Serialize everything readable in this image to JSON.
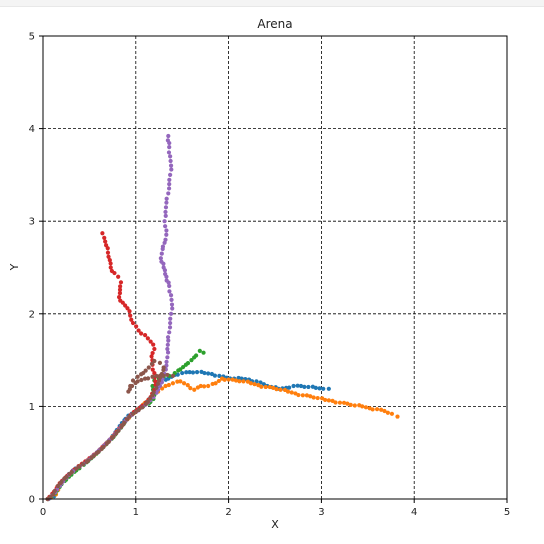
{
  "chart_data": {
    "type": "scatter",
    "title": "Arena",
    "xlabel": "X",
    "ylabel": "Y",
    "xlim": [
      0,
      5
    ],
    "ylim": [
      0,
      5
    ],
    "x_ticks": [
      "0",
      "1",
      "2",
      "3",
      "4",
      "5"
    ],
    "y_ticks": [
      "0",
      "1",
      "2",
      "3",
      "4",
      "5"
    ],
    "grid": true,
    "grid_style": "dashed",
    "series": [
      {
        "color": "#1f77b4",
        "points": [
          [
            0.05,
            0.0
          ],
          [
            0.12,
            0.03
          ],
          [
            0.15,
            0.1
          ],
          [
            0.2,
            0.18
          ],
          [
            0.28,
            0.27
          ],
          [
            0.35,
            0.33
          ],
          [
            0.42,
            0.38
          ],
          [
            0.5,
            0.43
          ],
          [
            0.58,
            0.5
          ],
          [
            0.65,
            0.57
          ],
          [
            0.72,
            0.64
          ],
          [
            0.78,
            0.72
          ],
          [
            0.85,
            0.82
          ],
          [
            0.92,
            0.9
          ],
          [
            1.0,
            0.95
          ],
          [
            1.06,
            1.0
          ],
          [
            1.12,
            1.05
          ],
          [
            1.18,
            1.12
          ],
          [
            1.23,
            1.2
          ],
          [
            1.28,
            1.26
          ],
          [
            1.35,
            1.3
          ],
          [
            1.42,
            1.34
          ],
          [
            1.5,
            1.36
          ],
          [
            1.58,
            1.37
          ],
          [
            1.66,
            1.37
          ],
          [
            1.74,
            1.36
          ],
          [
            1.82,
            1.35
          ],
          [
            1.9,
            1.33
          ],
          [
            1.98,
            1.31
          ],
          [
            2.06,
            1.3
          ],
          [
            2.14,
            1.3
          ],
          [
            2.22,
            1.29
          ],
          [
            2.3,
            1.27
          ],
          [
            2.38,
            1.24
          ],
          [
            2.46,
            1.21
          ],
          [
            2.54,
            1.19
          ],
          [
            2.62,
            1.2
          ],
          [
            2.7,
            1.22
          ],
          [
            2.78,
            1.22
          ],
          [
            2.86,
            1.21
          ],
          [
            2.94,
            1.2
          ],
          [
            3.02,
            1.19
          ],
          [
            3.08,
            1.19
          ]
        ]
      },
      {
        "color": "#ff7f0e",
        "points": [
          [
            0.05,
            0.0
          ],
          [
            0.14,
            0.05
          ],
          [
            0.18,
            0.14
          ],
          [
            0.25,
            0.23
          ],
          [
            0.33,
            0.3
          ],
          [
            0.4,
            0.36
          ],
          [
            0.48,
            0.42
          ],
          [
            0.56,
            0.48
          ],
          [
            0.64,
            0.56
          ],
          [
            0.72,
            0.64
          ],
          [
            0.8,
            0.73
          ],
          [
            0.88,
            0.83
          ],
          [
            0.96,
            0.91
          ],
          [
            1.04,
            0.98
          ],
          [
            1.1,
            1.04
          ],
          [
            1.17,
            1.1
          ],
          [
            1.24,
            1.16
          ],
          [
            1.32,
            1.22
          ],
          [
            1.4,
            1.25
          ],
          [
            1.48,
            1.27
          ],
          [
            1.56,
            1.23
          ],
          [
            1.63,
            1.18
          ],
          [
            1.7,
            1.22
          ],
          [
            1.78,
            1.22
          ],
          [
            1.86,
            1.25
          ],
          [
            1.93,
            1.3
          ],
          [
            2.0,
            1.29
          ],
          [
            2.08,
            1.28
          ],
          [
            2.16,
            1.27
          ],
          [
            2.24,
            1.25
          ],
          [
            2.32,
            1.23
          ],
          [
            2.4,
            1.21
          ],
          [
            2.48,
            1.2
          ],
          [
            2.56,
            1.18
          ],
          [
            2.64,
            1.16
          ],
          [
            2.72,
            1.14
          ],
          [
            2.8,
            1.12
          ],
          [
            2.88,
            1.11
          ],
          [
            2.96,
            1.09
          ],
          [
            3.04,
            1.07
          ],
          [
            3.12,
            1.06
          ],
          [
            3.2,
            1.04
          ],
          [
            3.28,
            1.03
          ],
          [
            3.36,
            1.01
          ],
          [
            3.44,
            1.0
          ],
          [
            3.52,
            0.98
          ],
          [
            3.6,
            0.97
          ],
          [
            3.68,
            0.95
          ],
          [
            3.76,
            0.92
          ],
          [
            3.82,
            0.89
          ]
        ]
      },
      {
        "color": "#2ca02c",
        "points": [
          [
            0.06,
            0.0
          ],
          [
            0.13,
            0.06
          ],
          [
            0.2,
            0.16
          ],
          [
            0.28,
            0.24
          ],
          [
            0.36,
            0.31
          ],
          [
            0.44,
            0.37
          ],
          [
            0.52,
            0.44
          ],
          [
            0.6,
            0.51
          ],
          [
            0.68,
            0.59
          ],
          [
            0.76,
            0.67
          ],
          [
            0.84,
            0.77
          ],
          [
            0.92,
            0.88
          ],
          [
            1.0,
            0.95
          ],
          [
            1.08,
            1.0
          ],
          [
            1.14,
            1.03
          ],
          [
            1.19,
            1.08
          ],
          [
            1.2,
            1.15
          ],
          [
            1.18,
            1.22
          ],
          [
            1.2,
            1.28
          ],
          [
            1.25,
            1.3
          ],
          [
            1.3,
            1.32
          ],
          [
            1.36,
            1.33
          ],
          [
            1.42,
            1.36
          ],
          [
            1.48,
            1.4
          ],
          [
            1.54,
            1.45
          ],
          [
            1.6,
            1.5
          ],
          [
            1.65,
            1.55
          ],
          [
            1.69,
            1.6
          ],
          [
            1.73,
            1.58
          ]
        ]
      },
      {
        "color": "#d62728",
        "points": [
          [
            0.05,
            0.0
          ],
          [
            0.12,
            0.08
          ],
          [
            0.18,
            0.17
          ],
          [
            0.26,
            0.25
          ],
          [
            0.34,
            0.32
          ],
          [
            0.42,
            0.38
          ],
          [
            0.5,
            0.44
          ],
          [
            0.58,
            0.5
          ],
          [
            0.66,
            0.58
          ],
          [
            0.74,
            0.66
          ],
          [
            0.82,
            0.76
          ],
          [
            0.9,
            0.86
          ],
          [
            0.98,
            0.94
          ],
          [
            1.05,
            0.99
          ],
          [
            1.11,
            1.04
          ],
          [
            1.16,
            1.1
          ],
          [
            1.2,
            1.18
          ],
          [
            1.21,
            1.27
          ],
          [
            1.2,
            1.36
          ],
          [
            1.18,
            1.45
          ],
          [
            1.17,
            1.54
          ],
          [
            1.2,
            1.62
          ],
          [
            1.16,
            1.7
          ],
          [
            1.1,
            1.77
          ],
          [
            1.03,
            1.82
          ],
          [
            0.97,
            1.9
          ],
          [
            0.94,
            1.98
          ],
          [
            0.91,
            2.06
          ],
          [
            0.86,
            2.12
          ],
          [
            0.82,
            2.18
          ],
          [
            0.83,
            2.26
          ],
          [
            0.84,
            2.34
          ],
          [
            0.81,
            2.4
          ],
          [
            0.77,
            2.44
          ],
          [
            0.73,
            2.5
          ],
          [
            0.72,
            2.58
          ],
          [
            0.7,
            2.66
          ],
          [
            0.68,
            2.74
          ],
          [
            0.66,
            2.82
          ],
          [
            0.64,
            2.87
          ]
        ]
      },
      {
        "color": "#9467bd",
        "points": [
          [
            0.06,
            0.0
          ],
          [
            0.13,
            0.07
          ],
          [
            0.2,
            0.17
          ],
          [
            0.28,
            0.26
          ],
          [
            0.36,
            0.33
          ],
          [
            0.44,
            0.38
          ],
          [
            0.52,
            0.45
          ],
          [
            0.6,
            0.52
          ],
          [
            0.68,
            0.6
          ],
          [
            0.76,
            0.68
          ],
          [
            0.84,
            0.78
          ],
          [
            0.92,
            0.88
          ],
          [
            1.0,
            0.94
          ],
          [
            1.07,
            0.99
          ],
          [
            1.13,
            1.04
          ],
          [
            1.19,
            1.1
          ],
          [
            1.24,
            1.18
          ],
          [
            1.28,
            1.26
          ],
          [
            1.31,
            1.35
          ],
          [
            1.33,
            1.44
          ],
          [
            1.34,
            1.53
          ],
          [
            1.34,
            1.62
          ],
          [
            1.35,
            1.71
          ],
          [
            1.36,
            1.8
          ],
          [
            1.37,
            1.9
          ],
          [
            1.38,
            2.0
          ],
          [
            1.39,
            2.1
          ],
          [
            1.38,
            2.2
          ],
          [
            1.36,
            2.3
          ],
          [
            1.33,
            2.4
          ],
          [
            1.3,
            2.5
          ],
          [
            1.27,
            2.6
          ],
          [
            1.29,
            2.7
          ],
          [
            1.32,
            2.8
          ],
          [
            1.33,
            2.9
          ],
          [
            1.31,
            3.0
          ],
          [
            1.32,
            3.1
          ],
          [
            1.33,
            3.2
          ],
          [
            1.35,
            3.3
          ],
          [
            1.36,
            3.4
          ],
          [
            1.37,
            3.5
          ],
          [
            1.38,
            3.6
          ],
          [
            1.37,
            3.7
          ],
          [
            1.36,
            3.8
          ],
          [
            1.35,
            3.92
          ]
        ]
      },
      {
        "color": "#8c564b",
        "points": [
          [
            0.05,
            0.0
          ],
          [
            0.11,
            0.05
          ],
          [
            0.16,
            0.14
          ],
          [
            0.23,
            0.22
          ],
          [
            0.31,
            0.29
          ],
          [
            0.39,
            0.35
          ],
          [
            0.47,
            0.4
          ],
          [
            0.55,
            0.47
          ],
          [
            0.63,
            0.54
          ],
          [
            0.71,
            0.62
          ],
          [
            0.79,
            0.71
          ],
          [
            0.86,
            0.8
          ],
          [
            0.93,
            0.89
          ],
          [
            1.0,
            0.94
          ],
          [
            1.07,
            0.99
          ],
          [
            1.13,
            1.05
          ],
          [
            1.18,
            1.12
          ],
          [
            1.22,
            1.2
          ],
          [
            1.25,
            1.28
          ],
          [
            1.28,
            1.35
          ],
          [
            1.3,
            1.42
          ],
          [
            1.26,
            1.47
          ],
          [
            1.2,
            1.49
          ],
          [
            1.14,
            1.42
          ],
          [
            1.08,
            1.36
          ],
          [
            1.02,
            1.32
          ],
          [
            0.97,
            1.28
          ],
          [
            0.94,
            1.22
          ],
          [
            0.92,
            1.16
          ],
          [
            0.96,
            1.22
          ],
          [
            1.02,
            1.27
          ],
          [
            1.1,
            1.3
          ],
          [
            1.18,
            1.32
          ],
          [
            1.26,
            1.33
          ],
          [
            1.34,
            1.34
          ],
          [
            1.4,
            1.33
          ]
        ]
      }
    ]
  }
}
